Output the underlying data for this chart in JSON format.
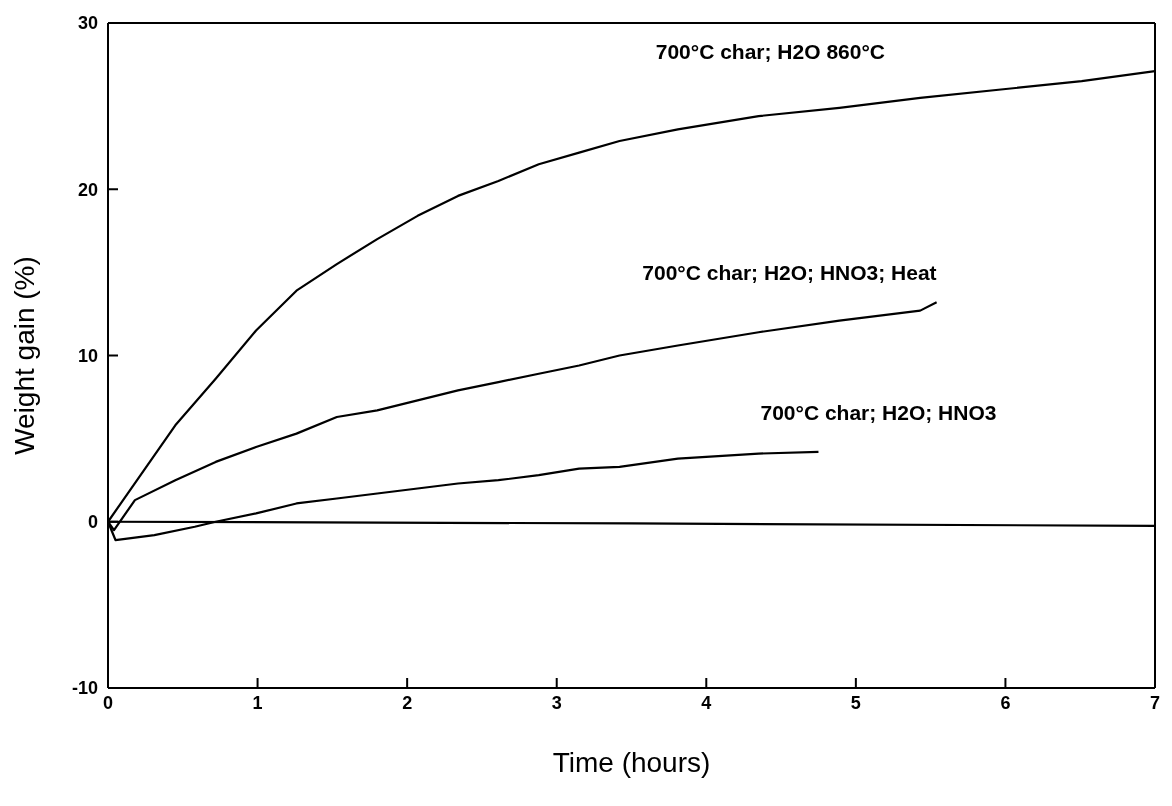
{
  "chart_data": {
    "type": "line",
    "xlabel": "Time (hours)",
    "ylabel": "Weight gain (%)",
    "xlim": [
      0,
      7
    ],
    "xticks": [
      0,
      1,
      2,
      3,
      4,
      5,
      6,
      7
    ],
    "ylim": [
      -10,
      30
    ],
    "yticks": [
      -10,
      0,
      10,
      20,
      30
    ],
    "grid": false,
    "series": [
      {
        "name": "700°C char; H2O 860°C",
        "color": "#000000",
        "x": [
          0,
          0.45,
          0.72,
          0.99,
          1.26,
          1.53,
          1.8,
          2.07,
          2.34,
          2.61,
          2.88,
          3.15,
          3.42,
          3.81,
          4.35,
          4.89,
          5.43,
          5.97,
          6.51,
          7.0
        ],
        "values": [
          0,
          5.8,
          8.6,
          11.5,
          13.9,
          15.5,
          17.0,
          18.4,
          19.6,
          20.5,
          21.5,
          22.2,
          22.9,
          23.6,
          24.4,
          24.9,
          25.5,
          26.0,
          26.5,
          27.1
        ]
      },
      {
        "name": "700°C char; H2O; HNO3; Heat",
        "color": "#000000",
        "x": [
          0,
          0.04,
          0.18,
          0.45,
          0.72,
          0.99,
          1.26,
          1.53,
          1.8,
          2.07,
          2.34,
          2.61,
          2.88,
          3.15,
          3.42,
          3.81,
          4.35,
          4.89,
          5.43,
          5.54
        ],
        "values": [
          0,
          -0.5,
          1.3,
          2.5,
          3.6,
          4.5,
          5.3,
          6.3,
          6.7,
          7.3,
          7.9,
          8.4,
          8.9,
          9.4,
          10.0,
          10.6,
          11.4,
          12.1,
          12.7,
          13.2
        ]
      },
      {
        "name": "700°C char; H2O; HNO3",
        "color": "#000000",
        "x": [
          0,
          0.05,
          0.31,
          0.58,
          0.72,
          0.99,
          1.26,
          1.53,
          1.8,
          2.07,
          2.34,
          2.61,
          2.88,
          3.15,
          3.42,
          3.81,
          4.35,
          4.75
        ],
        "values": [
          0,
          -1.1,
          -0.8,
          -0.3,
          0,
          0.5,
          1.1,
          1.4,
          1.7,
          2.0,
          2.3,
          2.5,
          2.8,
          3.2,
          3.3,
          3.8,
          4.1,
          4.2
        ]
      },
      {
        "color": "#000000",
        "x": [
          0,
          3.5,
          7
        ],
        "values": [
          0,
          -0.1,
          -0.25
        ]
      }
    ]
  }
}
